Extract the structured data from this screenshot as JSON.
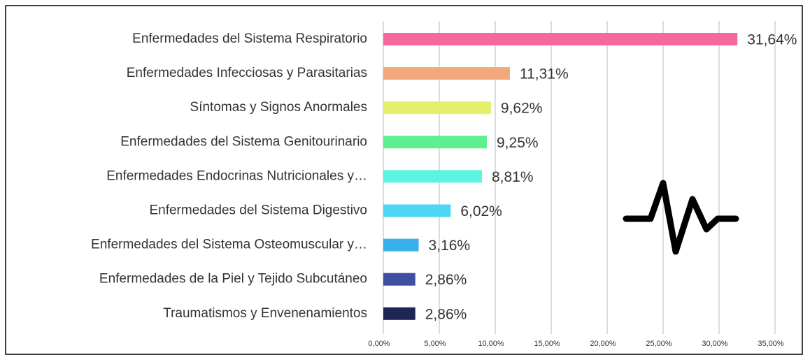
{
  "chart_data": {
    "type": "barh",
    "categories": [
      "Enfermedades del Sistema Respiratorio",
      "Enfermedades Infecciosas y Parasitarias",
      "Síntomas y Signos Anormales",
      "Enfermedades del Sistema Genitourinario",
      "Enfermedades Endocrinas Nutricionales y…",
      "Enfermedades del Sistema Digestivo",
      "Enfermedades del Sistema Osteomuscular y…",
      "Enfermedades de la Piel y Tejido Subcutáneo",
      "Traumatismos y Envenenamientos"
    ],
    "values": [
      31.64,
      11.31,
      9.62,
      9.25,
      8.81,
      6.02,
      3.16,
      2.86,
      2.86
    ],
    "value_labels": [
      "31,64%",
      "11,31%",
      "9,62%",
      "9,25%",
      "8,81%",
      "6,02%",
      "3,16%",
      "2,86%",
      "2,86%"
    ],
    "colors": [
      "#f7679b",
      "#f3a77c",
      "#e4f06b",
      "#5ef08f",
      "#5ef2e0",
      "#4dd7f2",
      "#3ab0ea",
      "#3f4ea0",
      "#1f2656"
    ],
    "xlim": [
      0,
      35
    ],
    "xticks": [
      {
        "value": 0,
        "label": "0,00%"
      },
      {
        "value": 5,
        "label": "5,00%"
      },
      {
        "value": 10,
        "label": "10,00%"
      },
      {
        "value": 15,
        "label": "15,00%"
      },
      {
        "value": 20,
        "label": "20,00%"
      },
      {
        "value": 25,
        "label": "25,00%"
      },
      {
        "value": 30,
        "label": "30,00%"
      },
      {
        "value": 35,
        "label": "35,00%"
      }
    ],
    "grid": true
  }
}
